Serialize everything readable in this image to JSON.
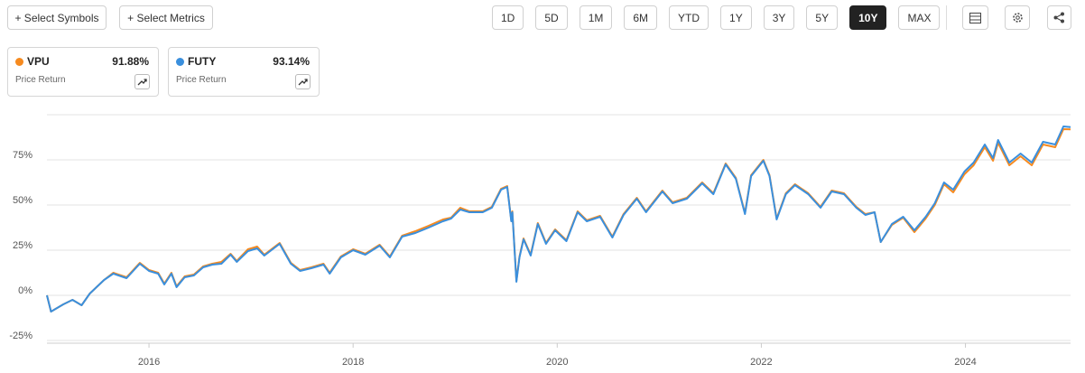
{
  "toolbar": {
    "buttons": [
      "+ Select Symbols",
      "+ Select Metrics"
    ],
    "ranges": [
      "1D",
      "5D",
      "1M",
      "6M",
      "YTD",
      "1Y",
      "3Y",
      "5Y",
      "10Y",
      "MAX"
    ],
    "active": "10Y"
  },
  "cards": [
    {
      "value_label": "91.88%",
      "metric": "Price Return"
    },
    {
      "value_label": "93.14%",
      "metric": "Price Return"
    }
  ],
  "chart_data": {
    "type": "line",
    "x": [
      2015.0,
      2015.04,
      2015.16,
      2015.25,
      2015.34,
      2015.42,
      2015.56,
      2015.65,
      2015.78,
      2015.91,
      2016.0,
      2016.09,
      2016.15,
      2016.22,
      2016.27,
      2016.35,
      2016.44,
      2016.53,
      2016.62,
      2016.71,
      2016.8,
      2016.86,
      2016.97,
      2017.06,
      2017.13,
      2017.28,
      2017.39,
      2017.48,
      2017.59,
      2017.71,
      2017.77,
      2017.88,
      2018.0,
      2018.12,
      2018.26,
      2018.36,
      2018.48,
      2018.61,
      2018.74,
      2018.88,
      2018.96,
      2019.05,
      2019.14,
      2019.27,
      2019.36,
      2019.45,
      2019.51,
      2019.55,
      2019.56,
      2019.6,
      2019.63,
      2019.67,
      2019.74,
      2019.81,
      2019.89,
      2019.98,
      2020.09,
      2020.2,
      2020.29,
      2020.42,
      2020.54,
      2020.65,
      2020.78,
      2020.87,
      2021.03,
      2021.13,
      2021.27,
      2021.42,
      2021.53,
      2021.65,
      2021.75,
      2021.84,
      2021.9,
      2022.02,
      2022.08,
      2022.15,
      2022.24,
      2022.33,
      2022.46,
      2022.58,
      2022.69,
      2022.81,
      2022.93,
      2023.02,
      2023.11,
      2023.17,
      2023.28,
      2023.39,
      2023.5,
      2023.61,
      2023.7,
      2023.79,
      2023.88,
      2023.99,
      2024.08,
      2024.19,
      2024.27,
      2024.32,
      2024.43,
      2024.54,
      2024.65,
      2024.76,
      2024.88,
      2024.96,
      2025.03
    ],
    "series": [
      {
        "name": "VPU",
        "color": "#f68a1f",
        "values": [
          0,
          -9,
          -5,
          -2.5,
          -5.5,
          1,
          8.5,
          12.5,
          10,
          18,
          14,
          12.5,
          6.5,
          12.5,
          5,
          10.5,
          11.5,
          16,
          17.5,
          18.5,
          23,
          19,
          25.5,
          27,
          22.5,
          29,
          18,
          14,
          15.5,
          17.5,
          12.5,
          21.5,
          25.5,
          23,
          28,
          21.5,
          33,
          35.5,
          38.5,
          42,
          43,
          48.5,
          46.5,
          46.5,
          49,
          59,
          60.5,
          41.5,
          46.5,
          8,
          21.5,
          31.5,
          22.5,
          40,
          29,
          36.5,
          30.5,
          46.5,
          41.5,
          44,
          32.5,
          45,
          54,
          46.5,
          58,
          51.5,
          54,
          62.5,
          56.5,
          73,
          65,
          45.5,
          66.5,
          75,
          66.5,
          42.5,
          56.5,
          61.5,
          56.5,
          49,
          58,
          56.5,
          49,
          45,
          46,
          29.5,
          39,
          43,
          35,
          42.5,
          50,
          61.5,
          57,
          67,
          72,
          82,
          74.5,
          84.5,
          72,
          77,
          72,
          83.5,
          82,
          92,
          91.88
        ]
      },
      {
        "name": "FUTY",
        "color": "#3a8fdd",
        "values": [
          0,
          -9,
          -5,
          -2.5,
          -5.5,
          1,
          8.5,
          12,
          9.5,
          17.5,
          13.5,
          12,
          6,
          12,
          4.5,
          10,
          11,
          15.5,
          17,
          17.5,
          22.5,
          18.5,
          24.5,
          26,
          22,
          28.5,
          17.5,
          13.5,
          15,
          17,
          12,
          21,
          25,
          22.5,
          27.5,
          21,
          32.5,
          34.5,
          37.5,
          41,
          42.5,
          47.5,
          46,
          46,
          48.5,
          58.5,
          60,
          41,
          46,
          7.5,
          21,
          31,
          22,
          39.5,
          28.5,
          36,
          30,
          46,
          41,
          43.5,
          32,
          44.5,
          53.5,
          46,
          57.5,
          51,
          53.5,
          62,
          56,
          72.5,
          64.5,
          45,
          66,
          74.5,
          66,
          42,
          56,
          61,
          56,
          48.5,
          57.5,
          56,
          48.5,
          44.5,
          46,
          29.5,
          39.5,
          43.5,
          36,
          43.5,
          51,
          62.5,
          58.5,
          68.5,
          73.5,
          83.5,
          76,
          86,
          73.5,
          78.5,
          73.5,
          85,
          83.5,
          93.5,
          93.14
        ]
      }
    ],
    "xlim": [
      2015.0,
      2025.03
    ],
    "xticks": [
      2016,
      2018,
      2020,
      2022,
      2024
    ],
    "ylim": [
      -26.5,
      100
    ],
    "yticks": [
      {
        "value": -25,
        "label": "-25%"
      },
      {
        "value": 0,
        "label": "0%"
      },
      {
        "value": 25,
        "label": "25%"
      },
      {
        "value": 50,
        "label": "50%"
      },
      {
        "value": 75,
        "label": "75%"
      }
    ],
    "grid": true
  }
}
